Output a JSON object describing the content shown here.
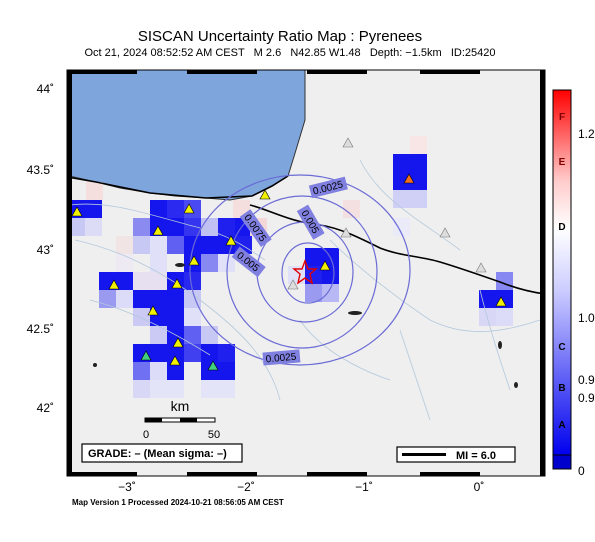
{
  "map": {
    "title": "SISCAN Uncertainty Ratio Map : Pyrenees",
    "event_info": "Oct 21, 2024 08:52:52 AM CEST   M 2.6   N42.85 W1.48   Depth: −1.5km   ID:25420",
    "footer": "Map Version 1 Processed 2024-10-21 08:56:05 AM CEST",
    "lat_labels": [
      "44˚",
      "43.5˚",
      "43˚",
      "42.5˚",
      "42˚"
    ],
    "lon_labels": [
      "−3˚",
      "−2˚",
      "−1˚",
      "0˚"
    ],
    "contour_labels": [
      "0.0025",
      "0.005",
      "0.0075",
      "0.005",
      "0.0025"
    ],
    "scale_bar": {
      "unit": "km",
      "start": "0",
      "end": "50"
    },
    "grade_box": "GRADE: – (Mean sigma: –)",
    "mi_box": "MI = 6.0",
    "epicenter_icon": "star-icon",
    "colors": {
      "sea": "#7ea6dc",
      "land": "#efefef",
      "border": "#000000",
      "contours": "#6b6bd6",
      "high": "#1515ee",
      "station": "#f0f000"
    }
  },
  "colorbar": {
    "letters": [
      "F",
      "E",
      "D",
      "C",
      "B",
      "A"
    ],
    "values": [
      "1.2",
      "1.0",
      "0.9",
      "0.9",
      "0"
    ]
  }
}
